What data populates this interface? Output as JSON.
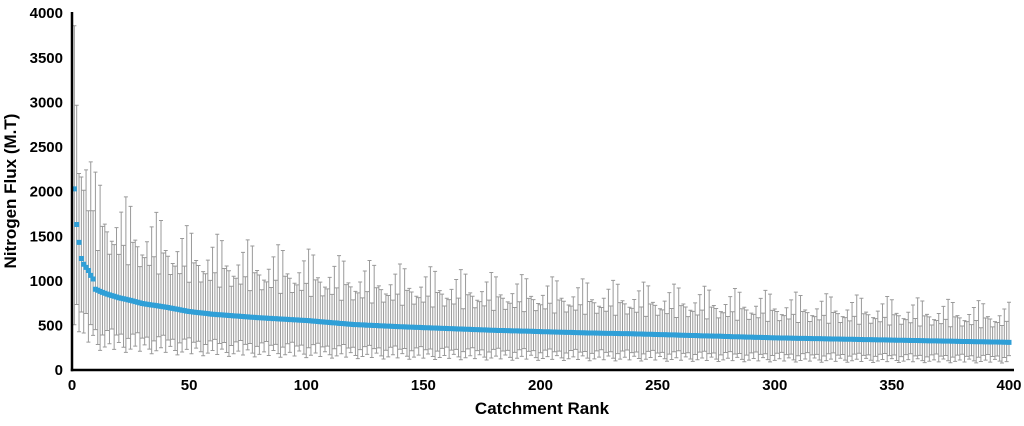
{
  "page": {
    "background_color": "#ffffff"
  },
  "chart_data": {
    "type": "scatter",
    "title": "",
    "xlabel": "Catchment Rank",
    "ylabel": "Nitrogen Flux (M.T)",
    "xlim": [
      0,
      400
    ],
    "ylim": [
      0,
      4000
    ],
    "x_ticks": [
      0,
      50,
      100,
      150,
      200,
      250,
      300,
      350,
      400
    ],
    "y_ticks": [
      0,
      500,
      1000,
      1500,
      2000,
      2500,
      3000,
      3500,
      4000
    ],
    "grid": "off",
    "legend": "none",
    "axis_color": "#000000",
    "marker": {
      "shape": "square",
      "color": "#2F9FD7",
      "size": 5
    },
    "error_bars": {
      "color": "#9A9A9A",
      "cap_width": 4,
      "upper_ratio_cycle": [
        1.9,
        1.82,
        1.54,
        1.73,
        1.7,
        1.95,
        1.6,
        2.2,
        1.75,
        2.45,
        1.5,
        2.35,
        1.85
      ],
      "lower_ratio_cycle": [
        0.25,
        0.45,
        0.3,
        0.52,
        0.35,
        0.55,
        0.28,
        0.48,
        0.38,
        0.5,
        0.32
      ]
    },
    "series": [
      {
        "name": "Nitrogen Flux",
        "x_start": 1,
        "x_step": 1,
        "values": [
          2030,
          1630,
          1430,
          1250,
          1185,
          1150,
          1115,
          1060,
          1020,
          905,
          893,
          881,
          870,
          860,
          850,
          842,
          834,
          826,
          818,
          810,
          804,
          798,
          792,
          786,
          780,
          773,
          766,
          759,
          752,
          745,
          741,
          737,
          733,
          729,
          725,
          721,
          717,
          713,
          709,
          705,
          700,
          695,
          690,
          685,
          680,
          675,
          670,
          665,
          660,
          655,
          652,
          649,
          646,
          643,
          640,
          637,
          634,
          631,
          628,
          625,
          623,
          621,
          619,
          617,
          615,
          613,
          611,
          609,
          607,
          605,
          603,
          601,
          599,
          597,
          595,
          593,
          591,
          589,
          587,
          585,
          584,
          582,
          581,
          579,
          578,
          576,
          575,
          573,
          572,
          570,
          568,
          567,
          565,
          564,
          562,
          561,
          559,
          558,
          556,
          555,
          553,
          550,
          548,
          546,
          544,
          541,
          539,
          537,
          535,
          532,
          530,
          528,
          526,
          523,
          521,
          519,
          517,
          514,
          512,
          510,
          509,
          508,
          506,
          505,
          504,
          502,
          501,
          500,
          499,
          498,
          496,
          495,
          494,
          492,
          491,
          490,
          489,
          488,
          486,
          485,
          484,
          483,
          482,
          481,
          480,
          479,
          478,
          477,
          476,
          475,
          474,
          473,
          472,
          471,
          470,
          469,
          468,
          467,
          466,
          465,
          464,
          463,
          462,
          461,
          460,
          459,
          458,
          457,
          456,
          455,
          454,
          453,
          452,
          451,
          450,
          449,
          448,
          447,
          446,
          445,
          444,
          443,
          443,
          442,
          441,
          441,
          440,
          439,
          438,
          438,
          437,
          436,
          436,
          435,
          434,
          434,
          433,
          432,
          431,
          430,
          429,
          428,
          428,
          427,
          426,
          426,
          425,
          424,
          423,
          423,
          422,
          421,
          421,
          420,
          419,
          419,
          418,
          417,
          416,
          415,
          415,
          414,
          414,
          413,
          413,
          412,
          412,
          411,
          411,
          410,
          410,
          409,
          409,
          408,
          408,
          407,
          407,
          406,
          406,
          405,
          404,
          403,
          403,
          402,
          401,
          401,
          400,
          399,
          398,
          398,
          397,
          396,
          396,
          395,
          394,
          394,
          393,
          392,
          391,
          390,
          389,
          388,
          388,
          387,
          386,
          386,
          385,
          384,
          383,
          383,
          382,
          381,
          381,
          380,
          379,
          379,
          378,
          377,
          376,
          375,
          374,
          373,
          373,
          372,
          371,
          371,
          370,
          369,
          368,
          368,
          367,
          366,
          366,
          365,
          364,
          364,
          363,
          362,
          361,
          360,
          360,
          359,
          359,
          358,
          358,
          357,
          357,
          356,
          356,
          355,
          355,
          354,
          354,
          353,
          353,
          352,
          352,
          351,
          351,
          350,
          350,
          349,
          349,
          348,
          348,
          347,
          347,
          346,
          346,
          345,
          345,
          344,
          344,
          343,
          343,
          342,
          342,
          341,
          341,
          340,
          340,
          339,
          339,
          338,
          338,
          337,
          337,
          336,
          336,
          335,
          335,
          334,
          334,
          333,
          333,
          332,
          332,
          331,
          331,
          330,
          330,
          329,
          329,
          328,
          328,
          327,
          327,
          326,
          326,
          325,
          325,
          324,
          324,
          323,
          323,
          322,
          322,
          321,
          321,
          320,
          320,
          319,
          319,
          318,
          318,
          317,
          317,
          316,
          316,
          315,
          315,
          314,
          314,
          313,
          313,
          312,
          312,
          311,
          311,
          310
        ]
      }
    ]
  }
}
